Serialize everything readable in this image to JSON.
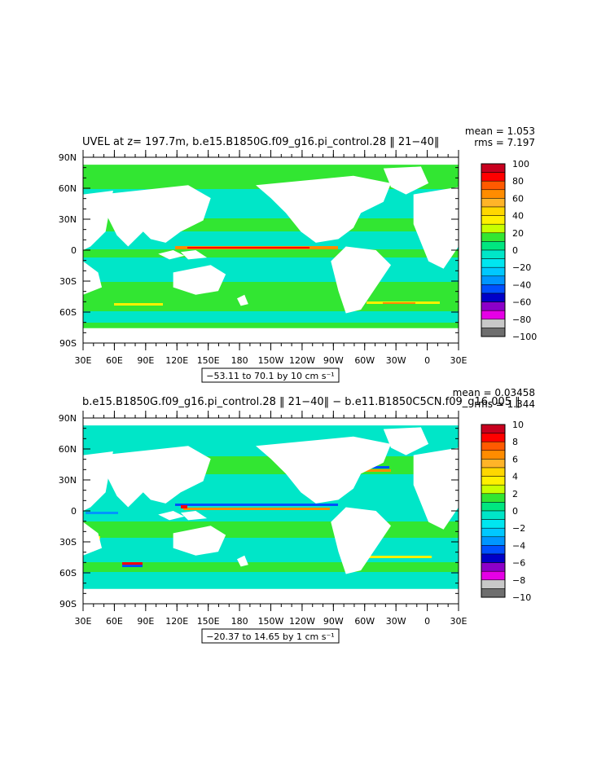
{
  "chart_data": [
    {
      "type": "map",
      "title": "UVEL at z= 197.7m, b.e15.B1850G.f09_g16.pi_control.28 ‖ 21−40‖",
      "stats": {
        "mean": "mean = 1.053",
        "rms": "rms = 7.197"
      },
      "y_ticks": [
        "90N",
        "60N",
        "30N",
        "0",
        "30S",
        "60S",
        "90S"
      ],
      "x_ticks": [
        "30E",
        "60E",
        "90E",
        "120E",
        "150E",
        "180",
        "150W",
        "120W",
        "90W",
        "60W",
        "30W",
        "0",
        "30E"
      ],
      "contour_info": "−53.11 to 70.1 by 10 cm s⁻¹",
      "colorbar": {
        "labels": [
          "100",
          "80",
          "60",
          "40",
          "20",
          "0",
          "−20",
          "−40",
          "−60",
          "−80",
          "−100"
        ],
        "colors": [
          "#c8001e",
          "#ff0000",
          "#ff5a00",
          "#ff8c00",
          "#ffb428",
          "#ffd700",
          "#fff000",
          "#c8ff00",
          "#32e632",
          "#00e680",
          "#00e6c8",
          "#00e6f0",
          "#00c8ff",
          "#0096ff",
          "#0050ff",
          "#0000c8",
          "#8c00c8",
          "#e600e6",
          "#c8c8c8",
          "#6e6e6e"
        ]
      }
    },
    {
      "type": "map",
      "title": "b.e15.B1850G.f09_g16.pi_control.28 ‖ 21−40‖ − b.e11.B1850C5CN.f09_g16.005 ‖",
      "stats": {
        "mean": "mean = 0.03458",
        "rms": "rms = 1.344"
      },
      "y_ticks": [
        "90N",
        "60N",
        "30N",
        "0",
        "30S",
        "60S",
        "90S"
      ],
      "x_ticks": [
        "30E",
        "60E",
        "90E",
        "120E",
        "150E",
        "180",
        "150W",
        "120W",
        "90W",
        "60W",
        "30W",
        "0",
        "30E"
      ],
      "contour_info": "−20.37 to 14.65 by 1 cm s⁻¹",
      "colorbar": {
        "labels": [
          "10",
          "8",
          "6",
          "4",
          "2",
          "0",
          "−2",
          "−4",
          "−6",
          "−8",
          "−10"
        ],
        "colors": [
          "#c8001e",
          "#ff0000",
          "#ff5a00",
          "#ff8c00",
          "#ffb428",
          "#ffd700",
          "#fff000",
          "#c8ff00",
          "#32e632",
          "#00e680",
          "#00e6c8",
          "#00e6f0",
          "#00c8ff",
          "#0096ff",
          "#0050ff",
          "#0000c8",
          "#8c00c8",
          "#e600e6",
          "#c8c8c8",
          "#6e6e6e"
        ]
      }
    }
  ]
}
